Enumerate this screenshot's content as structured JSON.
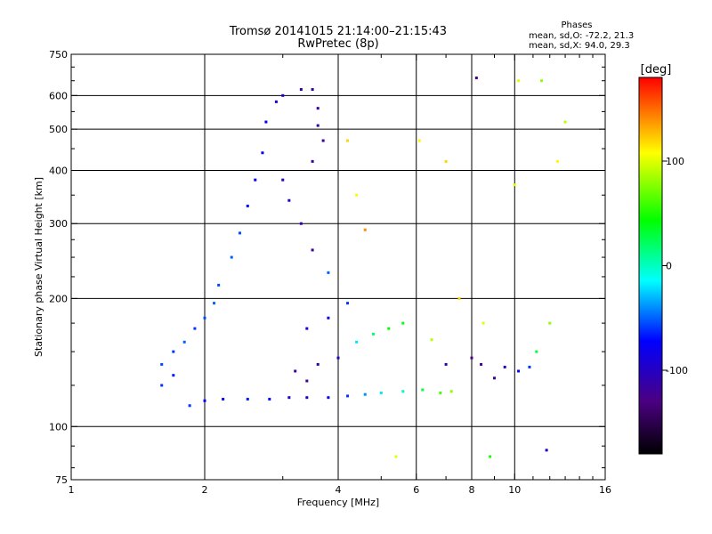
{
  "chart_data": {
    "type": "scatter",
    "title": "Tromsø 20141015 21:14:00–21:15:43",
    "subtitle": "RwPretec (8p)",
    "stats": {
      "heading": "Phases",
      "line1": "mean, sd,O: -72.2, 21.3",
      "line2": "mean, sd,X:  94.0, 29.3"
    },
    "xlabel": "Frequency [MHz]",
    "ylabel": "Stationary phase Virtual Height [km]",
    "x_scale": "log",
    "y_scale": "log",
    "xlim": [
      1,
      16
    ],
    "ylim": [
      75,
      750
    ],
    "x_ticks": [
      1,
      2,
      4,
      6,
      8,
      10,
      16
    ],
    "x_tick_labels": [
      "1",
      "2",
      "4",
      "6",
      "8",
      "10",
      "16"
    ],
    "y_ticks": [
      75,
      100,
      200,
      300,
      400,
      500,
      600,
      750
    ],
    "y_tick_labels": [
      "75",
      "100",
      "200",
      "300",
      "400",
      "500",
      "600",
      "750"
    ],
    "grid_x": [
      2,
      4,
      6,
      8,
      10
    ],
    "grid_y": [
      100,
      200,
      300,
      400,
      500,
      600
    ],
    "colorbar": {
      "label": "[deg]",
      "range": [
        -180,
        180
      ],
      "ticks": [
        100,
        0,
        -100
      ],
      "tick_labels": [
        "100",
        "0",
        "-100"
      ],
      "colors": [
        "#000000",
        "#4b0082",
        "#0000ff",
        "#00ffff",
        "#00ff00",
        "#ffff00",
        "#ff0000"
      ]
    },
    "series": [
      {
        "points": [
          [
            1.85,
            112,
            -60
          ],
          [
            2.0,
            115,
            -75
          ],
          [
            2.2,
            116,
            -70
          ],
          [
            2.5,
            116,
            -65
          ],
          [
            2.8,
            116,
            -70
          ],
          [
            3.1,
            117,
            -95
          ],
          [
            3.4,
            117,
            -100
          ],
          [
            3.8,
            117,
            -80
          ],
          [
            4.2,
            118,
            -60
          ],
          [
            4.6,
            119,
            -40
          ],
          [
            5.0,
            120,
            -20
          ],
          [
            5.6,
            121,
            0
          ],
          [
            6.2,
            122,
            30
          ],
          [
            6.8,
            120,
            60
          ],
          [
            7.2,
            121,
            80
          ],
          [
            1.6,
            125,
            -60
          ],
          [
            1.7,
            132,
            -65
          ],
          [
            1.6,
            140,
            -55
          ],
          [
            1.7,
            150,
            -60
          ],
          [
            1.8,
            158,
            -50
          ],
          [
            1.9,
            170,
            -60
          ],
          [
            2.0,
            180,
            -55
          ],
          [
            2.1,
            195,
            -50
          ],
          [
            2.15,
            215,
            -55
          ],
          [
            2.3,
            250,
            -50
          ],
          [
            2.4,
            285,
            -55
          ],
          [
            2.5,
            330,
            -70
          ],
          [
            2.6,
            380,
            -80
          ],
          [
            2.7,
            440,
            -75
          ],
          [
            2.75,
            520,
            -80
          ],
          [
            2.9,
            580,
            -90
          ],
          [
            3.0,
            600,
            -95
          ],
          [
            3.3,
            620,
            -110
          ],
          [
            3.5,
            620,
            -110
          ],
          [
            3.6,
            560,
            -120
          ],
          [
            3.2,
            135,
            -120
          ],
          [
            3.4,
            128,
            -130
          ],
          [
            3.6,
            140,
            -110
          ],
          [
            4.0,
            145,
            -100
          ],
          [
            4.4,
            158,
            -20
          ],
          [
            4.8,
            165,
            20
          ],
          [
            5.2,
            170,
            40
          ],
          [
            5.6,
            175,
            40
          ],
          [
            3.4,
            170,
            -90
          ],
          [
            3.8,
            180,
            -80
          ],
          [
            4.2,
            195,
            -60
          ],
          [
            3.8,
            230,
            -50
          ],
          [
            3.5,
            260,
            -120
          ],
          [
            3.3,
            300,
            -110
          ],
          [
            3.1,
            340,
            -100
          ],
          [
            3.0,
            380,
            -105
          ],
          [
            3.5,
            420,
            -115
          ],
          [
            3.7,
            470,
            -120
          ],
          [
            3.6,
            510,
            -110
          ],
          [
            4.2,
            470,
            120
          ],
          [
            4.4,
            350,
            110
          ],
          [
            4.6,
            290,
            140
          ],
          [
            7.0,
            140,
            -110
          ],
          [
            8.0,
            145,
            -130
          ],
          [
            8.4,
            140,
            -120
          ],
          [
            9.0,
            130,
            -120
          ],
          [
            9.5,
            138,
            -100
          ],
          [
            10.2,
            135,
            -80
          ],
          [
            10.8,
            138,
            -60
          ],
          [
            11.2,
            150,
            30
          ],
          [
            12.0,
            175,
            80
          ],
          [
            6.5,
            160,
            90
          ],
          [
            7.5,
            200,
            120
          ],
          [
            8.5,
            175,
            100
          ],
          [
            10.0,
            370,
            100
          ],
          [
            12.5,
            420,
            110
          ],
          [
            8.2,
            660,
            -130
          ],
          [
            10.2,
            650,
            100
          ],
          [
            13.0,
            520,
            90
          ],
          [
            11.5,
            650,
            80
          ],
          [
            5.4,
            85,
            100
          ],
          [
            8.8,
            85,
            50
          ],
          [
            11.8,
            88,
            -100
          ],
          [
            6.1,
            470,
            110
          ],
          [
            7.0,
            420,
            120
          ]
        ]
      }
    ]
  }
}
